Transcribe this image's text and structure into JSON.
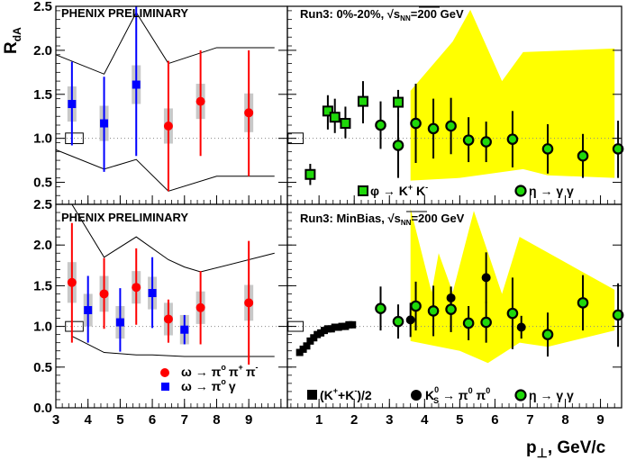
{
  "axis": {
    "y_label": "R",
    "y_label_sub": "dA",
    "x_label": "p",
    "x_label_sym": "⊥",
    "x_label_unit": ", GeV/c"
  },
  "labels": {
    "phenix_top": "PHENIX PRELIMINARY",
    "phenix_bottom": "PHENIX PRELIMINARY",
    "run_top": "Run3: 0%-20%, √s",
    "run_top_sub": "NN",
    "run_top_tail": "=200 GeV",
    "run_bottom": "Run3: MinBias, √s",
    "run_bottom_sub": "NN",
    "run_bottom_tail": "=200 GeV"
  },
  "legend": {
    "omega_pipipi": "ω → π",
    "omega_pipipi_rest": "π",
    "omega_pipipi_rest2": "π",
    "omega_pigamma": "ω → π",
    "omega_pigamma_rest": "γ",
    "phi_kk": "φ → K",
    "phi_kk_mid": " K",
    "eta_gg_top": "η → γ γ",
    "kk_over2": "(K",
    "kk_over2_mid": "+K",
    "kk_over2_end": ")/2",
    "ks_pi0": "K",
    "ks_pi0_rest": " → π",
    "ks_pi0_rest2": " π",
    "eta_gg_bottom": "η → γ γ",
    "sup_plus": "+",
    "sup_minus": "-",
    "sup_zero": "0",
    "sup_o": "o",
    "sub_s": "S"
  },
  "ticks": {
    "y": [
      "0.0",
      "0.5",
      "1.0",
      "1.5",
      "2.0",
      "2.5"
    ],
    "x_left": [
      "3",
      "4",
      "5",
      "6",
      "7",
      "8",
      "9"
    ],
    "x_right": [
      "1",
      "2",
      "3",
      "4",
      "5",
      "6",
      "7",
      "8",
      "9"
    ]
  },
  "colors": {
    "red": "#ff0000",
    "blue": "#0000ff",
    "green": "#1fd80a",
    "yellow": "#ffff00",
    "grey_box": "#c8c8c8",
    "black": "#000000"
  },
  "chart_data": [
    {
      "panel": "top-left",
      "type": "scatter",
      "xlim": [
        3,
        10.2
      ],
      "ylim": [
        0.25,
        2.5
      ],
      "series": [
        {
          "name": "ω → π0 π+ π-",
          "color": "red",
          "points": [
            {
              "x": 6.5,
              "y": 1.14,
              "lo": 0.4,
              "hi": 1.88,
              "sys": 0.2
            },
            {
              "x": 7.5,
              "y": 1.42,
              "lo": 0.8,
              "hi": 2.0,
              "sys": 0.2
            },
            {
              "x": 9.0,
              "y": 1.29,
              "lo": 0.57,
              "hi": 2.0,
              "sys": 0.22
            }
          ]
        },
        {
          "name": "ω → π0 γ",
          "color": "blue",
          "points": [
            {
              "x": 3.5,
              "y": 1.39,
              "lo": 0.92,
              "hi": 1.87,
              "sys": 0.2
            },
            {
              "x": 4.5,
              "y": 1.17,
              "lo": 0.62,
              "hi": 1.7,
              "sys": 0.2
            },
            {
              "x": 5.5,
              "y": 1.61,
              "lo": 0.8,
              "hi": 2.5,
              "sys": 0.22
            }
          ]
        }
      ],
      "envelope_upper": [
        [
          3.0,
          1.95
        ],
        [
          4.5,
          1.73
        ],
        [
          5.5,
          2.43
        ],
        [
          6.5,
          1.85
        ],
        [
          8.0,
          2.03
        ],
        [
          9.8,
          2.03
        ]
      ],
      "envelope_lower": [
        [
          3.0,
          0.87
        ],
        [
          4.5,
          0.65
        ],
        [
          5.5,
          0.76
        ],
        [
          6.5,
          0.4
        ],
        [
          8.0,
          0.57
        ],
        [
          9.8,
          0.57
        ]
      ],
      "norm_box": {
        "x0": 3.3,
        "x1": 3.85,
        "y0": 0.94,
        "y1": 1.06
      }
    },
    {
      "panel": "top-right",
      "type": "scatter",
      "xlim": [
        0.1,
        9.6
      ],
      "ylim": [
        0.25,
        2.5
      ],
      "band": [
        [
          3.6,
          1.54
        ],
        [
          4.8,
          2.1
        ],
        [
          5.3,
          2.46
        ],
        [
          6.2,
          1.65
        ],
        [
          6.8,
          1.98
        ],
        [
          9.4,
          2.02
        ],
        [
          9.4,
          0.55
        ],
        [
          7.5,
          0.58
        ],
        [
          6.8,
          0.65
        ],
        [
          5.0,
          0.55
        ],
        [
          3.6,
          0.52
        ]
      ],
      "series": [
        {
          "name": "φ → K+ K-",
          "marker": "square",
          "color": "green",
          "points": [
            {
              "x": 0.75,
              "y": 0.59,
              "lo": 0.47,
              "hi": 0.71
            },
            {
              "x": 1.25,
              "y": 1.31,
              "lo": 1.1,
              "hi": 1.49
            },
            {
              "x": 1.45,
              "y": 1.24,
              "lo": 1.06,
              "hi": 1.45
            },
            {
              "x": 1.75,
              "y": 1.17,
              "lo": 1.0,
              "hi": 1.36
            },
            {
              "x": 2.25,
              "y": 1.42,
              "lo": 1.17,
              "hi": 1.65
            },
            {
              "x": 3.25,
              "y": 1.41,
              "lo": 1.24,
              "hi": 1.55
            }
          ]
        },
        {
          "name": "η → γ γ",
          "marker": "circle",
          "color": "green",
          "points": [
            {
              "x": 2.75,
              "y": 1.15,
              "lo": 0.88,
              "hi": 1.42
            },
            {
              "x": 3.25,
              "y": 0.92,
              "lo": 0.55,
              "hi": 1.29
            },
            {
              "x": 3.75,
              "y": 1.17,
              "lo": 0.72,
              "hi": 1.62
            },
            {
              "x": 4.25,
              "y": 1.11,
              "lo": 0.77,
              "hi": 1.45
            },
            {
              "x": 4.75,
              "y": 1.14,
              "lo": 0.82,
              "hi": 1.46
            },
            {
              "x": 5.25,
              "y": 0.98,
              "lo": 0.73,
              "hi": 1.24
            },
            {
              "x": 5.75,
              "y": 0.96,
              "lo": 0.73,
              "hi": 1.19
            },
            {
              "x": 6.5,
              "y": 0.99,
              "lo": 0.67,
              "hi": 1.31
            },
            {
              "x": 7.5,
              "y": 0.88,
              "lo": 0.6,
              "hi": 1.16
            },
            {
              "x": 8.5,
              "y": 0.8,
              "lo": 0.55,
              "hi": 1.05
            },
            {
              "x": 9.5,
              "y": 0.88,
              "lo": 0.55,
              "hi": 1.2
            }
          ]
        }
      ],
      "norm_box": {
        "x0": 0.12,
        "x1": 0.55,
        "y0": 0.94,
        "y1": 1.06
      }
    },
    {
      "panel": "bottom-left",
      "type": "scatter",
      "xlim": [
        3,
        10.2
      ],
      "ylim": [
        0.0,
        2.5
      ],
      "series": [
        {
          "name": "ω → π0 π+ π-",
          "color": "red",
          "points": [
            {
              "x": 3.5,
              "y": 1.54,
              "lo": 0.8,
              "hi": 2.27,
              "sys": 0.25
            },
            {
              "x": 4.5,
              "y": 1.4,
              "lo": 0.97,
              "hi": 1.84,
              "sys": 0.22
            },
            {
              "x": 5.5,
              "y": 1.48,
              "lo": 1.02,
              "hi": 1.96,
              "sys": 0.2
            },
            {
              "x": 6.5,
              "y": 1.09,
              "lo": 0.8,
              "hi": 1.33,
              "sys": 0.2
            },
            {
              "x": 7.5,
              "y": 1.23,
              "lo": 0.78,
              "hi": 1.68,
              "sys": 0.2
            },
            {
              "x": 9.0,
              "y": 1.29,
              "lo": 0.53,
              "hi": 2.05,
              "sys": 0.22
            }
          ]
        },
        {
          "name": "ω → π0 γ",
          "color": "blue",
          "points": [
            {
              "x": 4.0,
              "y": 1.2,
              "lo": 0.8,
              "hi": 1.62,
              "sys": 0.2
            },
            {
              "x": 5.0,
              "y": 1.05,
              "lo": 0.69,
              "hi": 1.47,
              "sys": 0.2
            },
            {
              "x": 6.0,
              "y": 1.41,
              "lo": 0.98,
              "hi": 1.85,
              "sys": 0.2
            },
            {
              "x": 7.0,
              "y": 0.96,
              "lo": 0.78,
              "hi": 1.14,
              "sys": 0.18
            }
          ]
        }
      ],
      "envelope_upper": [
        [
          3.5,
          2.5
        ],
        [
          4.5,
          1.85
        ],
        [
          5.5,
          2.1
        ],
        [
          6.5,
          1.82
        ],
        [
          7.0,
          1.73
        ],
        [
          7.5,
          1.67
        ],
        [
          9.8,
          1.9
        ]
      ],
      "envelope_lower": [
        [
          3.5,
          0.88
        ],
        [
          4.5,
          0.68
        ],
        [
          5.5,
          0.65
        ],
        [
          6.0,
          0.65
        ],
        [
          7.0,
          0.63
        ],
        [
          9.8,
          0.63
        ]
      ],
      "norm_box": {
        "x0": 3.3,
        "x1": 3.85,
        "y0": 0.94,
        "y1": 1.06
      }
    },
    {
      "panel": "bottom-right",
      "type": "scatter",
      "xlim": [
        0.1,
        9.6
      ],
      "ylim": [
        0.0,
        2.5
      ],
      "band": [
        [
          3.6,
          2.45
        ],
        [
          4.2,
          1.42
        ],
        [
          4.4,
          1.9
        ],
        [
          4.8,
          1.42
        ],
        [
          5.4,
          2.42
        ],
        [
          6.2,
          1.4
        ],
        [
          6.7,
          2.1
        ],
        [
          9.4,
          1.45
        ],
        [
          9.4,
          0.95
        ],
        [
          7.5,
          0.75
        ],
        [
          6.7,
          0.8
        ],
        [
          5.8,
          0.55
        ],
        [
          5.0,
          0.7
        ],
        [
          3.6,
          0.82
        ]
      ],
      "series": [
        {
          "name": "(K+K-)/2",
          "marker": "square",
          "color": "black",
          "points": [
            {
              "x": 0.45,
              "y": 0.68
            },
            {
              "x": 0.55,
              "y": 0.72
            },
            {
              "x": 0.65,
              "y": 0.76
            },
            {
              "x": 0.75,
              "y": 0.82
            },
            {
              "x": 0.85,
              "y": 0.86
            },
            {
              "x": 0.95,
              "y": 0.9
            },
            {
              "x": 1.05,
              "y": 0.92
            },
            {
              "x": 1.15,
              "y": 0.95
            },
            {
              "x": 1.25,
              "y": 0.97
            },
            {
              "x": 1.35,
              "y": 0.97
            },
            {
              "x": 1.45,
              "y": 0.99
            },
            {
              "x": 1.55,
              "y": 0.99
            },
            {
              "x": 1.65,
              "y": 1.0
            },
            {
              "x": 1.75,
              "y": 1.0
            },
            {
              "x": 1.85,
              "y": 1.02
            },
            {
              "x": 1.95,
              "y": 1.02
            }
          ]
        },
        {
          "name": "K0S → π0 π0",
          "marker": "circle",
          "color": "black",
          "points": [
            {
              "x": 3.6,
              "y": 1.08,
              "lo": 0.87,
              "hi": 1.29
            },
            {
              "x": 4.75,
              "y": 1.35,
              "lo": 1.22,
              "hi": 1.48
            },
            {
              "x": 5.75,
              "y": 1.6,
              "lo": 1.29,
              "hi": 1.91
            },
            {
              "x": 6.75,
              "y": 0.99,
              "lo": 0.85,
              "hi": 1.13
            }
          ]
        },
        {
          "name": "η → γ γ",
          "marker": "circle",
          "color": "green",
          "points": [
            {
              "x": 2.75,
              "y": 1.22,
              "lo": 0.95,
              "hi": 1.49
            },
            {
              "x": 3.25,
              "y": 1.06,
              "lo": 0.85,
              "hi": 1.27
            },
            {
              "x": 3.75,
              "y": 1.25,
              "lo": 0.95,
              "hi": 1.55
            },
            {
              "x": 4.25,
              "y": 1.19,
              "lo": 0.88,
              "hi": 1.5
            },
            {
              "x": 4.75,
              "y": 1.21,
              "lo": 0.93,
              "hi": 1.49
            },
            {
              "x": 5.25,
              "y": 1.04,
              "lo": 0.83,
              "hi": 1.25
            },
            {
              "x": 5.75,
              "y": 1.05,
              "lo": 0.8,
              "hi": 1.3
            },
            {
              "x": 6.5,
              "y": 1.16,
              "lo": 0.72,
              "hi": 1.6
            },
            {
              "x": 7.5,
              "y": 0.9,
              "lo": 0.63,
              "hi": 1.17
            },
            {
              "x": 8.5,
              "y": 1.29,
              "lo": 0.95,
              "hi": 1.63
            },
            {
              "x": 9.5,
              "y": 1.14,
              "lo": 0.75,
              "hi": 1.53
            }
          ]
        }
      ],
      "norm_box": {
        "x0": 0.12,
        "x1": 0.55,
        "y0": 0.94,
        "y1": 1.06
      }
    }
  ]
}
